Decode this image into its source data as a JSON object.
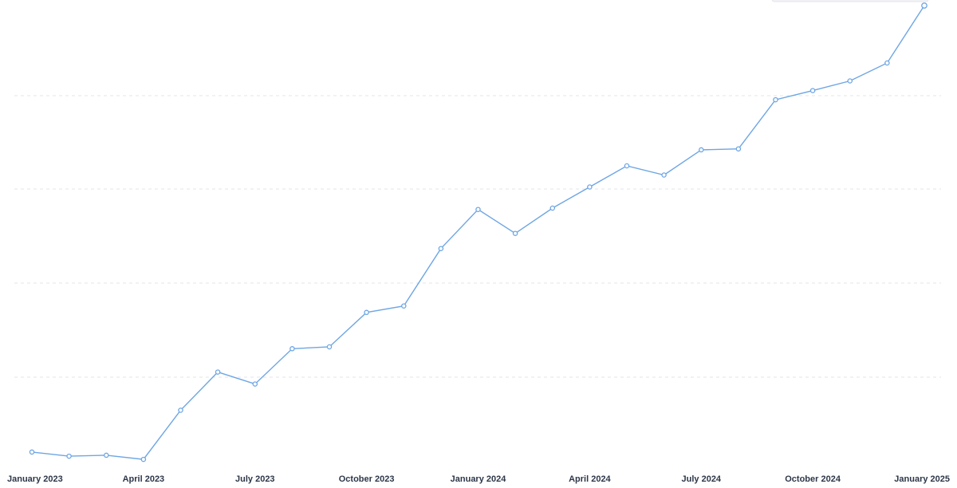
{
  "colors": {
    "line": "#6ea6e4",
    "grid": "#e3e6ea",
    "tick_text": "#2d3748",
    "background": "#ffffff"
  },
  "chart_data": {
    "type": "line",
    "title": "",
    "xlabel": "",
    "ylabel": "",
    "grid": true,
    "y_axis_visible": false,
    "ylim": [
      0,
      100
    ],
    "x_tick_labels": [
      "January 2023",
      "April 2023",
      "July 2023",
      "October 2023",
      "January 2024",
      "April 2024",
      "July 2024",
      "October 2024",
      "January 2025"
    ],
    "x_tick_index": [
      0,
      3,
      6,
      9,
      12,
      15,
      18,
      21,
      24
    ],
    "series": [
      {
        "values": [
          2.8,
          1.9,
          2.1,
          1.2,
          11.9,
          20.2,
          17.6,
          25.3,
          25.7,
          33.2,
          34.6,
          47.1,
          55.6,
          50.4,
          55.9,
          60.5,
          65.1,
          63.1,
          68.6,
          68.8,
          79.5,
          81.5,
          83.6,
          87.5,
          100
        ]
      }
    ]
  }
}
